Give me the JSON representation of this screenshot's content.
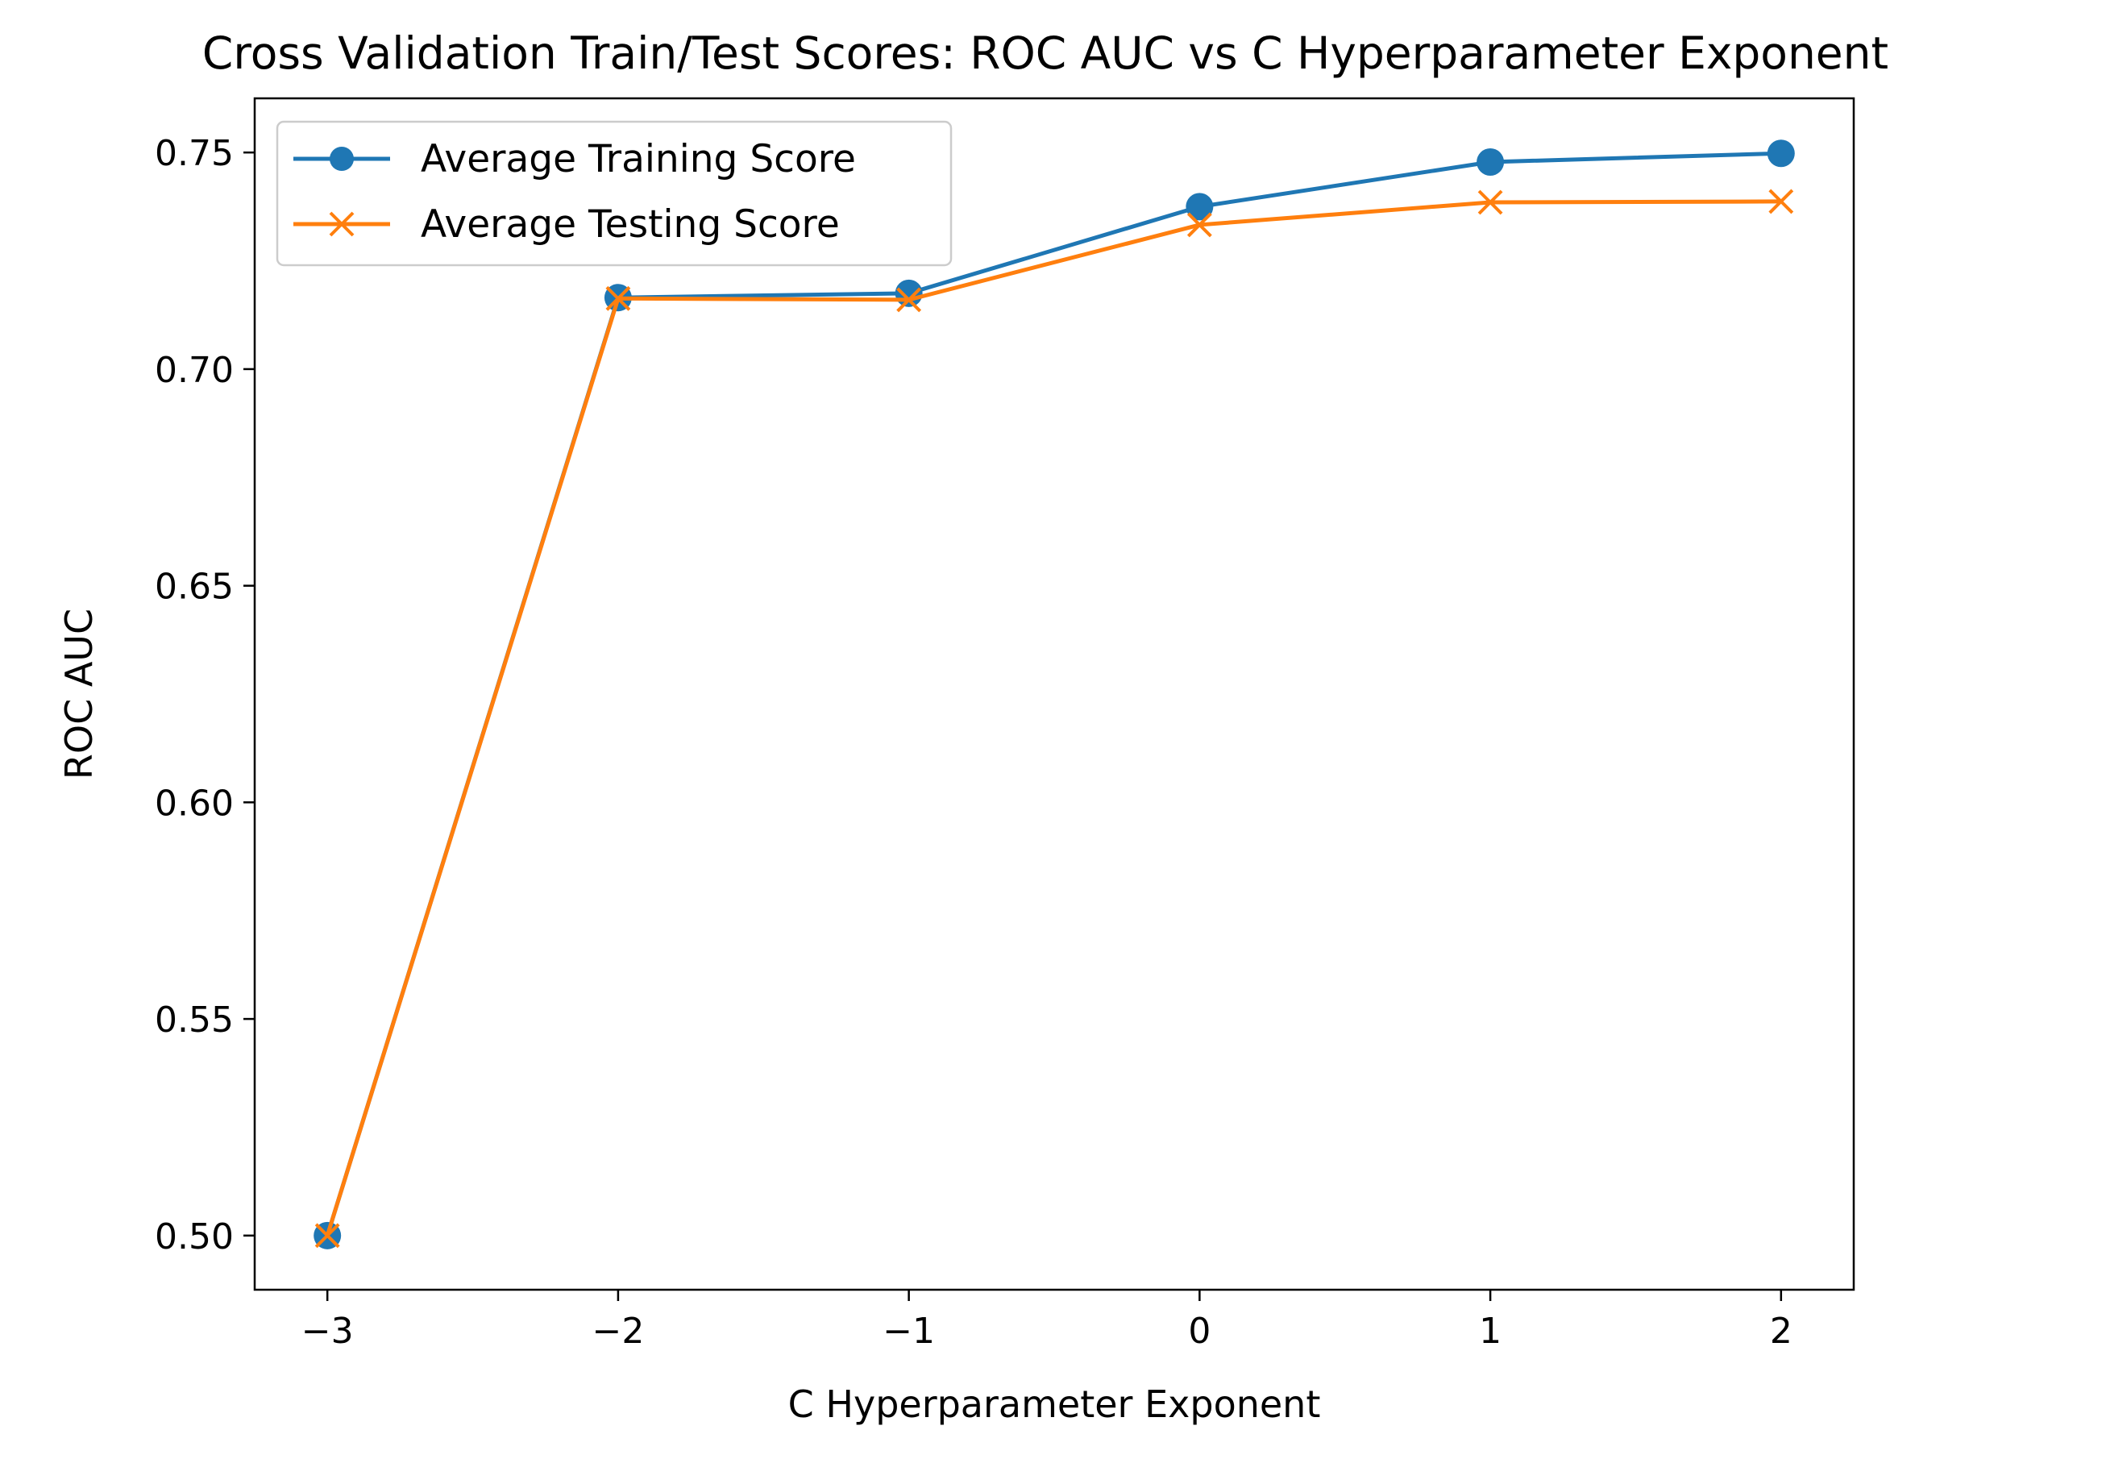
{
  "chart_data": {
    "type": "line",
    "title": "Cross Validation Train/Test Scores: ROC AUC vs C Hyperparameter Exponent",
    "xlabel": "C Hyperparameter Exponent",
    "ylabel": "ROC AUC",
    "x": [
      -3,
      -2,
      -1,
      0,
      1,
      2
    ],
    "xticks": [
      -3,
      -2,
      -1,
      0,
      1,
      2
    ],
    "xtick_labels": [
      "−3",
      "−2",
      "−1",
      "0",
      "1",
      "2"
    ],
    "yticks": [
      0.5,
      0.55,
      0.6,
      0.65,
      0.7,
      0.75
    ],
    "ytick_labels": [
      "0.50",
      "0.55",
      "0.60",
      "0.65",
      "0.70",
      "0.75"
    ],
    "xlim": [
      -3.25,
      2.25
    ],
    "ylim": [
      0.4875,
      0.7625
    ],
    "grid": false,
    "legend_position": "top-left",
    "series": [
      {
        "name": "Average Training Score",
        "marker": "circle",
        "color": "#1f77b4",
        "values": [
          0.5,
          0.7165,
          0.7175,
          0.7375,
          0.7478,
          0.7498
        ]
      },
      {
        "name": "Average Testing Score",
        "marker": "x",
        "color": "#ff7f0e",
        "values": [
          0.5,
          0.7163,
          0.716,
          0.7333,
          0.7385,
          0.7387
        ]
      }
    ]
  }
}
